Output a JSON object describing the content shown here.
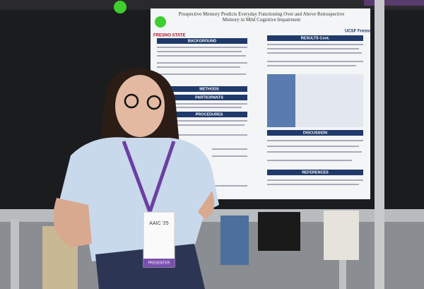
{
  "poster": {
    "title": "Prospective Memory Predicts Everyday Functioning Over and Above Retrospective Memory in Mild Cognitive Impairment",
    "logo_left": "FRESNO STATE",
    "logo_right": "UCSF Fresno",
    "sections_left": [
      "BACKGROUND",
      "METHODS",
      "PARTICIPANTS",
      "PROCEDURES"
    ],
    "sections_right": [
      "RESULTS Cont.",
      "DISCUSSION",
      "REFERENCES"
    ]
  },
  "badge": {
    "event": "AAIC '25",
    "role": "PRESENTER"
  }
}
